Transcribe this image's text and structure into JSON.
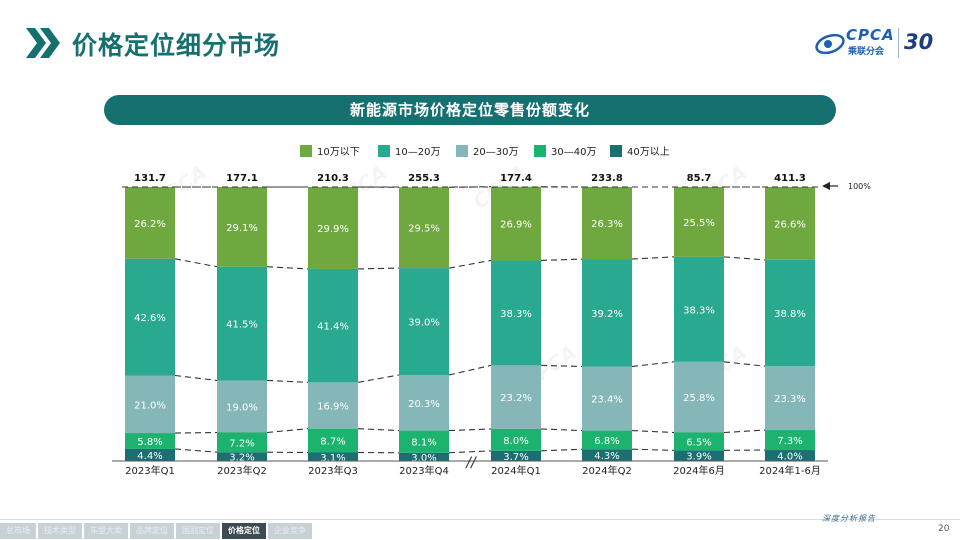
{
  "header": {
    "title": "价格定位细分市场"
  },
  "logo": {
    "brand": "CPCA",
    "subtitle": "乘联分会",
    "anniversary": "30"
  },
  "banner": {
    "title": "新能源市场价格定位零售份额变化"
  },
  "chart_data": {
    "type": "bar",
    "stacked": true,
    "normalized": true,
    "title": "新能源市场价格定位零售份额变化",
    "categories": [
      "2023年Q1",
      "2023年Q2",
      "2023年Q3",
      "2023年Q4",
      "2024年Q1",
      "2024年Q2",
      "2024年6月",
      "2024年1-6月"
    ],
    "totals": [
      "131.7",
      "177.1",
      "210.3",
      "255.3",
      "177.4",
      "233.8",
      "85.7",
      "411.3"
    ],
    "series": [
      {
        "name": "40万以上",
        "color": "#1d6e73",
        "values": [
          4.4,
          3.2,
          3.1,
          3.0,
          3.7,
          4.3,
          3.9,
          4.0
        ]
      },
      {
        "name": "30—40万",
        "color": "#1bb36e",
        "values": [
          5.8,
          7.2,
          8.7,
          8.1,
          8.0,
          6.8,
          6.5,
          7.3
        ]
      },
      {
        "name": "20—30万",
        "color": "#85b6b8",
        "values": [
          21.0,
          19.0,
          16.9,
          20.3,
          23.2,
          23.4,
          25.8,
          23.3
        ]
      },
      {
        "name": "10—20万",
        "color": "#29a98f",
        "values": [
          42.6,
          41.5,
          41.4,
          39.0,
          38.3,
          39.2,
          38.3,
          38.8
        ]
      },
      {
        "name": "10万以下",
        "color": "#6fa83f",
        "values": [
          26.2,
          29.1,
          29.9,
          29.5,
          26.9,
          26.3,
          25.5,
          26.6
        ]
      }
    ],
    "legend_order": [
      "10万以下",
      "10—20万",
      "20—30万",
      "30—40万",
      "40万以上"
    ],
    "legend_position": "top-center",
    "ylim": [
      0,
      100
    ],
    "reference_label": "100%",
    "axis_break_symbol": "//",
    "value_suffix": "%"
  },
  "footer": {
    "tabs": [
      "总市场",
      "技术类型",
      "车型大类",
      "品牌定位",
      "国别定位",
      "价格定位",
      "企业竞争"
    ],
    "active_tab": "价格定位",
    "slogan": "深度分析报告",
    "page_number": "20"
  },
  "colors": {
    "accent": "#16706f",
    "banner": "#16706f"
  }
}
